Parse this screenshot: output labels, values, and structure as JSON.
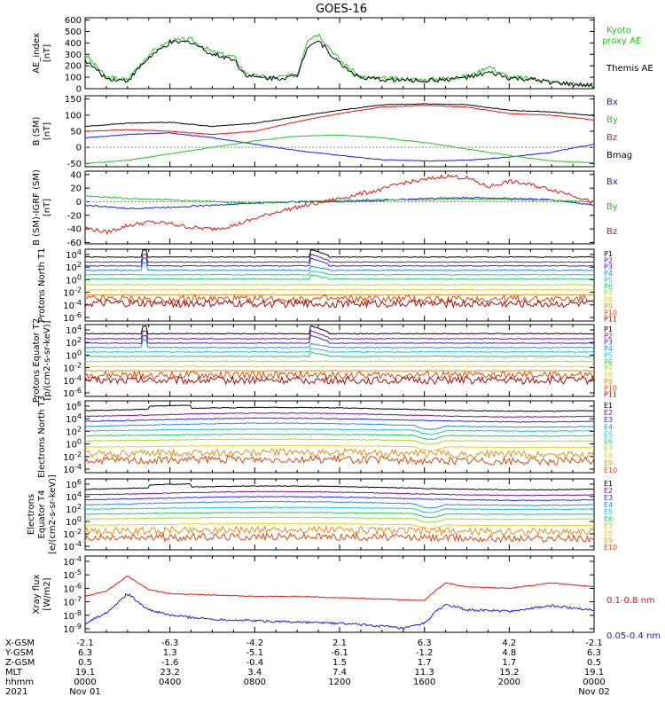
{
  "title": "GOES-16",
  "colors": {
    "black": "#000000",
    "green": "#22c422",
    "red": "#e01414",
    "blue": "#1a1ae0",
    "ramp": [
      "#000000",
      "#7a0f8c",
      "#2a2ad8",
      "#1c8fe0",
      "#12c8c8",
      "#20c860",
      "#a8d820",
      "#e8d020",
      "#e89018",
      "#d84a14",
      "#a01010"
    ]
  },
  "chart_data": [
    {
      "id": "ae",
      "type": "line",
      "ylabel": "AE_index [nT]",
      "yticks": [
        "600",
        "500",
        "400",
        "300",
        "200",
        "100",
        "0"
      ],
      "ylim": [
        0,
        620
      ],
      "legend": [
        "Kyoto proxy AE",
        "Themis AE"
      ],
      "series": [
        {
          "name": "Kyoto proxy AE",
          "color": "#22c422",
          "x": [
            0,
            1,
            2,
            3,
            4,
            5,
            6,
            7,
            7.5,
            8,
            9,
            10,
            10.5,
            11,
            12,
            13,
            14,
            16,
            17,
            18,
            18.5,
            19,
            19.5,
            20,
            21,
            22,
            23,
            24
          ],
          "y": [
            300,
            100,
            80,
            300,
            420,
            430,
            320,
            280,
            150,
            110,
            100,
            120,
            440,
            480,
            250,
            100,
            90,
            80,
            90,
            110,
            140,
            200,
            150,
            100,
            90,
            60,
            40,
            30
          ]
        },
        {
          "name": "Themis AE",
          "color": "#000000",
          "x": [
            0,
            1,
            2,
            3,
            4,
            5,
            6,
            7,
            7.5,
            8,
            9,
            10,
            10.5,
            11,
            12,
            13,
            14,
            16,
            17,
            18,
            18.5,
            19,
            19.5,
            20,
            21,
            22,
            23,
            24
          ],
          "y": [
            250,
            90,
            70,
            270,
            400,
            410,
            300,
            260,
            130,
            100,
            90,
            110,
            380,
            420,
            220,
            90,
            80,
            70,
            80,
            100,
            110,
            140,
            120,
            90,
            80,
            55,
            35,
            25
          ]
        }
      ]
    },
    {
      "id": "bsm",
      "type": "line",
      "ylabel": "B (SM) [nT]",
      "yticks": [
        "150",
        "100",
        "50",
        "0",
        "-50"
      ],
      "ylim": [
        -60,
        160
      ],
      "legend": [
        "Bx",
        "By",
        "Bz",
        "Bmag"
      ],
      "series": [
        {
          "name": "Bx",
          "color": "#1a1ae0",
          "x": [
            0,
            2,
            4,
            6,
            8,
            10,
            12,
            14,
            16,
            18,
            20,
            22,
            24
          ],
          "y": [
            30,
            40,
            45,
            30,
            10,
            -10,
            -25,
            -38,
            -42,
            -40,
            -30,
            -15,
            10
          ]
        },
        {
          "name": "By",
          "color": "#22c422",
          "x": [
            0,
            2,
            4,
            6,
            8,
            10,
            12,
            14,
            16,
            18,
            20,
            22,
            24
          ],
          "y": [
            -50,
            -40,
            -20,
            0,
            20,
            35,
            38,
            30,
            15,
            -5,
            -25,
            -42,
            -48
          ]
        },
        {
          "name": "Bz",
          "color": "#e01414",
          "x": [
            0,
            2,
            4,
            6,
            8,
            10,
            12,
            14,
            16,
            18,
            20,
            22,
            24
          ],
          "y": [
            50,
            55,
            50,
            40,
            50,
            80,
            105,
            125,
            130,
            125,
            105,
            100,
            85
          ]
        },
        {
          "name": "Bmag",
          "color": "#000000",
          "x": [
            0,
            2,
            4,
            6,
            8,
            10,
            12,
            14,
            16,
            18,
            20,
            22,
            24
          ],
          "y": [
            65,
            75,
            78,
            65,
            75,
            95,
            115,
            132,
            135,
            132,
            115,
            110,
            98
          ]
        }
      ]
    },
    {
      "id": "bdiff",
      "type": "line",
      "ylabel": "B (SM)-IGRF (SM) [nT]",
      "yticks": [
        "40",
        "20",
        "0",
        "-20",
        "-40",
        "-60"
      ],
      "ylim": [
        -62,
        45
      ],
      "legend": [
        "Bx",
        "By",
        "Bz"
      ],
      "series": [
        {
          "name": "Bx",
          "color": "#1a1ae0",
          "x": [
            0,
            2,
            4,
            6,
            8,
            10,
            12,
            14,
            16,
            18,
            20,
            22,
            24
          ],
          "y": [
            -5,
            -10,
            -8,
            -5,
            -2,
            0,
            0,
            2,
            5,
            6,
            5,
            3,
            -5
          ]
        },
        {
          "name": "By",
          "color": "#22c422",
          "x": [
            0,
            2,
            4,
            6,
            8,
            10,
            12,
            14,
            16,
            18,
            20,
            22,
            24
          ],
          "y": [
            8,
            5,
            3,
            0,
            -2,
            0,
            2,
            3,
            3,
            4,
            3,
            2,
            0
          ]
        },
        {
          "name": "Bz",
          "color": "#e01414",
          "x": [
            0,
            1,
            2,
            3,
            4,
            5,
            6,
            7,
            8,
            9,
            10,
            11,
            12,
            13,
            14,
            15,
            16,
            17,
            18,
            19,
            20,
            21,
            22,
            23,
            24
          ],
          "y": [
            -38,
            -45,
            -35,
            -30,
            -32,
            -38,
            -40,
            -35,
            -25,
            -15,
            -8,
            -2,
            5,
            12,
            18,
            28,
            32,
            38,
            35,
            22,
            30,
            25,
            18,
            10,
            -2
          ]
        }
      ]
    },
    {
      "id": "p1",
      "type": "line",
      "ylabel": "Protons North T1",
      "yticks": [
        "10^4",
        "10^2",
        "10^0",
        "10^-2",
        "10^-4",
        "10^-6"
      ],
      "legend": [
        "P1",
        "P2",
        "P3",
        "P4",
        "P5",
        "P6",
        "P7",
        "P8",
        "P9",
        "P10",
        "P11"
      ],
      "log_levels": [
        3.6,
        2.8,
        2.2,
        1.5,
        0.8,
        0.1,
        -0.8,
        -1.6,
        -2.4,
        -3.1,
        -3.8
      ]
    },
    {
      "id": "p2",
      "type": "line",
      "ylabel": "Protons Equator T2 [p/(cm2-s-sr-keV)]",
      "yticks": [
        "10^4",
        "10^2",
        "10^0",
        "10^-2",
        "10^-4",
        "10^-6"
      ],
      "legend": [
        "P1",
        "P2",
        "P3",
        "P4",
        "P5",
        "P6",
        "P7",
        "P8",
        "P9",
        "P10",
        "P11"
      ],
      "log_levels": [
        3.4,
        2.6,
        1.9,
        1.2,
        0.5,
        -0.2,
        -1.0,
        -1.8,
        -2.5,
        -3.2,
        -4.0
      ]
    },
    {
      "id": "e1",
      "type": "line",
      "ylabel": "Electrons North T3",
      "yticks": [
        "10^6",
        "10^4",
        "10^2",
        "10^0",
        "10^-2",
        "10^-4"
      ],
      "legend": [
        "E1",
        "E2",
        "E3",
        "E4",
        "E5",
        "E6",
        "E7",
        "E8",
        "E9",
        "E10"
      ],
      "log_levels": [
        5.5,
        4.6,
        3.8,
        3.0,
        2.2,
        1.4,
        0.6,
        -0.4,
        -1.5,
        -2.6
      ]
    },
    {
      "id": "e2",
      "type": "line",
      "ylabel": "Electrons Equator T4 [e/(cm2-s-sr-keV)]",
      "yticks": [
        "10^6",
        "10^4",
        "10^2",
        "10^0",
        "10^-2",
        "10^-4"
      ],
      "legend": [
        "E1",
        "E2",
        "E3",
        "E4",
        "E5",
        "E6",
        "E7",
        "E8",
        "E9",
        "E10"
      ],
      "log_levels": [
        5.4,
        4.5,
        3.7,
        2.9,
        2.1,
        1.3,
        0.5,
        -0.5,
        -1.5,
        -2.6
      ]
    },
    {
      "id": "xray",
      "type": "line",
      "ylabel": "Xray flux [W/m2]",
      "yticks": [
        "10^-4",
        "10^-5",
        "10^-6",
        "10^-7",
        "10^-8",
        "10^-9"
      ],
      "legend": [
        "0.1-0.8 nm",
        "0.05-0.4 nm"
      ],
      "series": [
        {
          "name": "0.1-0.8 nm",
          "color": "#e01414",
          "x": [
            0,
            1,
            2,
            2.5,
            3,
            4,
            6,
            8,
            10,
            12,
            14,
            16,
            16.5,
            17,
            18,
            20,
            22,
            24
          ],
          "y": [
            -6.6,
            -6.2,
            -5.1,
            -5.6,
            -6.1,
            -6.4,
            -6.5,
            -6.6,
            -6.6,
            -6.7,
            -6.8,
            -6.9,
            -6.2,
            -5.6,
            -5.9,
            -6.0,
            -5.6,
            -5.9
          ]
        },
        {
          "name": "0.05-0.4 nm",
          "color": "#1a1ae0",
          "x": [
            0,
            1,
            2,
            2.5,
            3,
            4,
            6,
            8,
            10,
            12,
            14,
            15,
            16,
            16.5,
            17,
            18,
            20,
            22,
            24
          ],
          "y": [
            -8.6,
            -7.8,
            -6.4,
            -7.0,
            -7.6,
            -8.0,
            -8.3,
            -8.4,
            -8.5,
            -8.6,
            -8.8,
            -9.0,
            -8.6,
            -7.8,
            -7.2,
            -7.6,
            -7.7,
            -7.3,
            -7.6
          ]
        }
      ]
    }
  ],
  "orbit_table": {
    "labels": [
      "X-GSM",
      "Y-GSM",
      "Z-GSM",
      "MLT",
      "hhmm",
      "2021"
    ],
    "columns": [
      [
        "-2.1",
        "6.3",
        "0.5",
        "19.1",
        "0000",
        "Nov 01"
      ],
      [
        "-6.3",
        "1.3",
        "-1.6",
        "23.2",
        "0400",
        ""
      ],
      [
        "-4.2",
        "-5.1",
        "-0.4",
        "3.4",
        "0800",
        ""
      ],
      [
        "2.1",
        "-6.1",
        "1.5",
        "7.4",
        "1200",
        ""
      ],
      [
        "6.3",
        "-1.2",
        "1.7",
        "11.3",
        "1600",
        ""
      ],
      [
        "4.2",
        "4.8",
        "1.7",
        "15.2",
        "2000",
        ""
      ],
      [
        "-2.1",
        "6.3",
        "0.5",
        "19.1",
        "0000",
        "Nov 02"
      ]
    ]
  }
}
